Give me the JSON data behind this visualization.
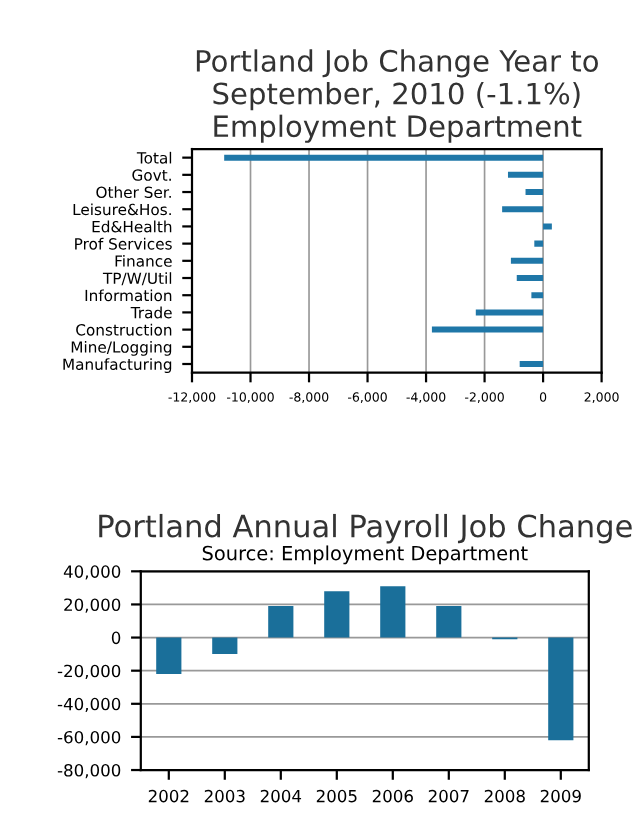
{
  "chart_data": [
    {
      "type": "bar",
      "orientation": "horizontal",
      "title": "Portland Job Change Year to September, 2010 (-1.1%) Employment Department",
      "categories": [
        "Total",
        "Govt.",
        "Other Ser.",
        "Leisure&Hos.",
        "Ed&Health",
        "Prof Services",
        "Finance",
        "TP/W/Util",
        "Information",
        "Trade",
        "Construction",
        "Mine/Logging",
        "Manufacturing"
      ],
      "values": [
        -10900,
        -1200,
        -600,
        -1400,
        300,
        -300,
        -1100,
        -900,
        -400,
        -2300,
        -3800,
        0,
        -800
      ],
      "color": "#1f77a8",
      "grid": "x",
      "xlim": [
        -12000,
        2000
      ],
      "xticks": [
        {
          "value": -12000,
          "label": "-12,000"
        },
        {
          "value": -10000,
          "label": "-10,000"
        },
        {
          "value": -8000,
          "label": "-8,000"
        },
        {
          "value": -6000,
          "label": "-6,000"
        },
        {
          "value": -4000,
          "label": "-4,000"
        },
        {
          "value": -2000,
          "label": "-2,000"
        },
        0,
        {
          "value": 2000,
          "label": "2,000"
        }
      ]
    },
    {
      "type": "bar",
      "title": "Portland Annual Payroll Job Change",
      "subtitle": "Source: Employment Department",
      "categories": [
        "2002",
        "2003",
        "2004",
        "2005",
        "2006",
        "2007",
        "2008",
        "2009"
      ],
      "values": [
        -22000,
        -10000,
        19000,
        28000,
        31000,
        19000,
        -1000,
        -62000
      ],
      "color": "#1a6f9a",
      "grid": "y",
      "ylim": [
        -80000,
        40000
      ],
      "yticks": [
        {
          "value": -80000,
          "label": "-80,000"
        },
        {
          "value": -60000,
          "label": "-60,000"
        },
        {
          "value": -40000,
          "label": "-40,000"
        },
        {
          "value": -20000,
          "label": "-20,000"
        },
        0,
        {
          "value": 20000,
          "label": "20,000"
        },
        {
          "value": 40000,
          "label": "40,000"
        }
      ]
    }
  ]
}
